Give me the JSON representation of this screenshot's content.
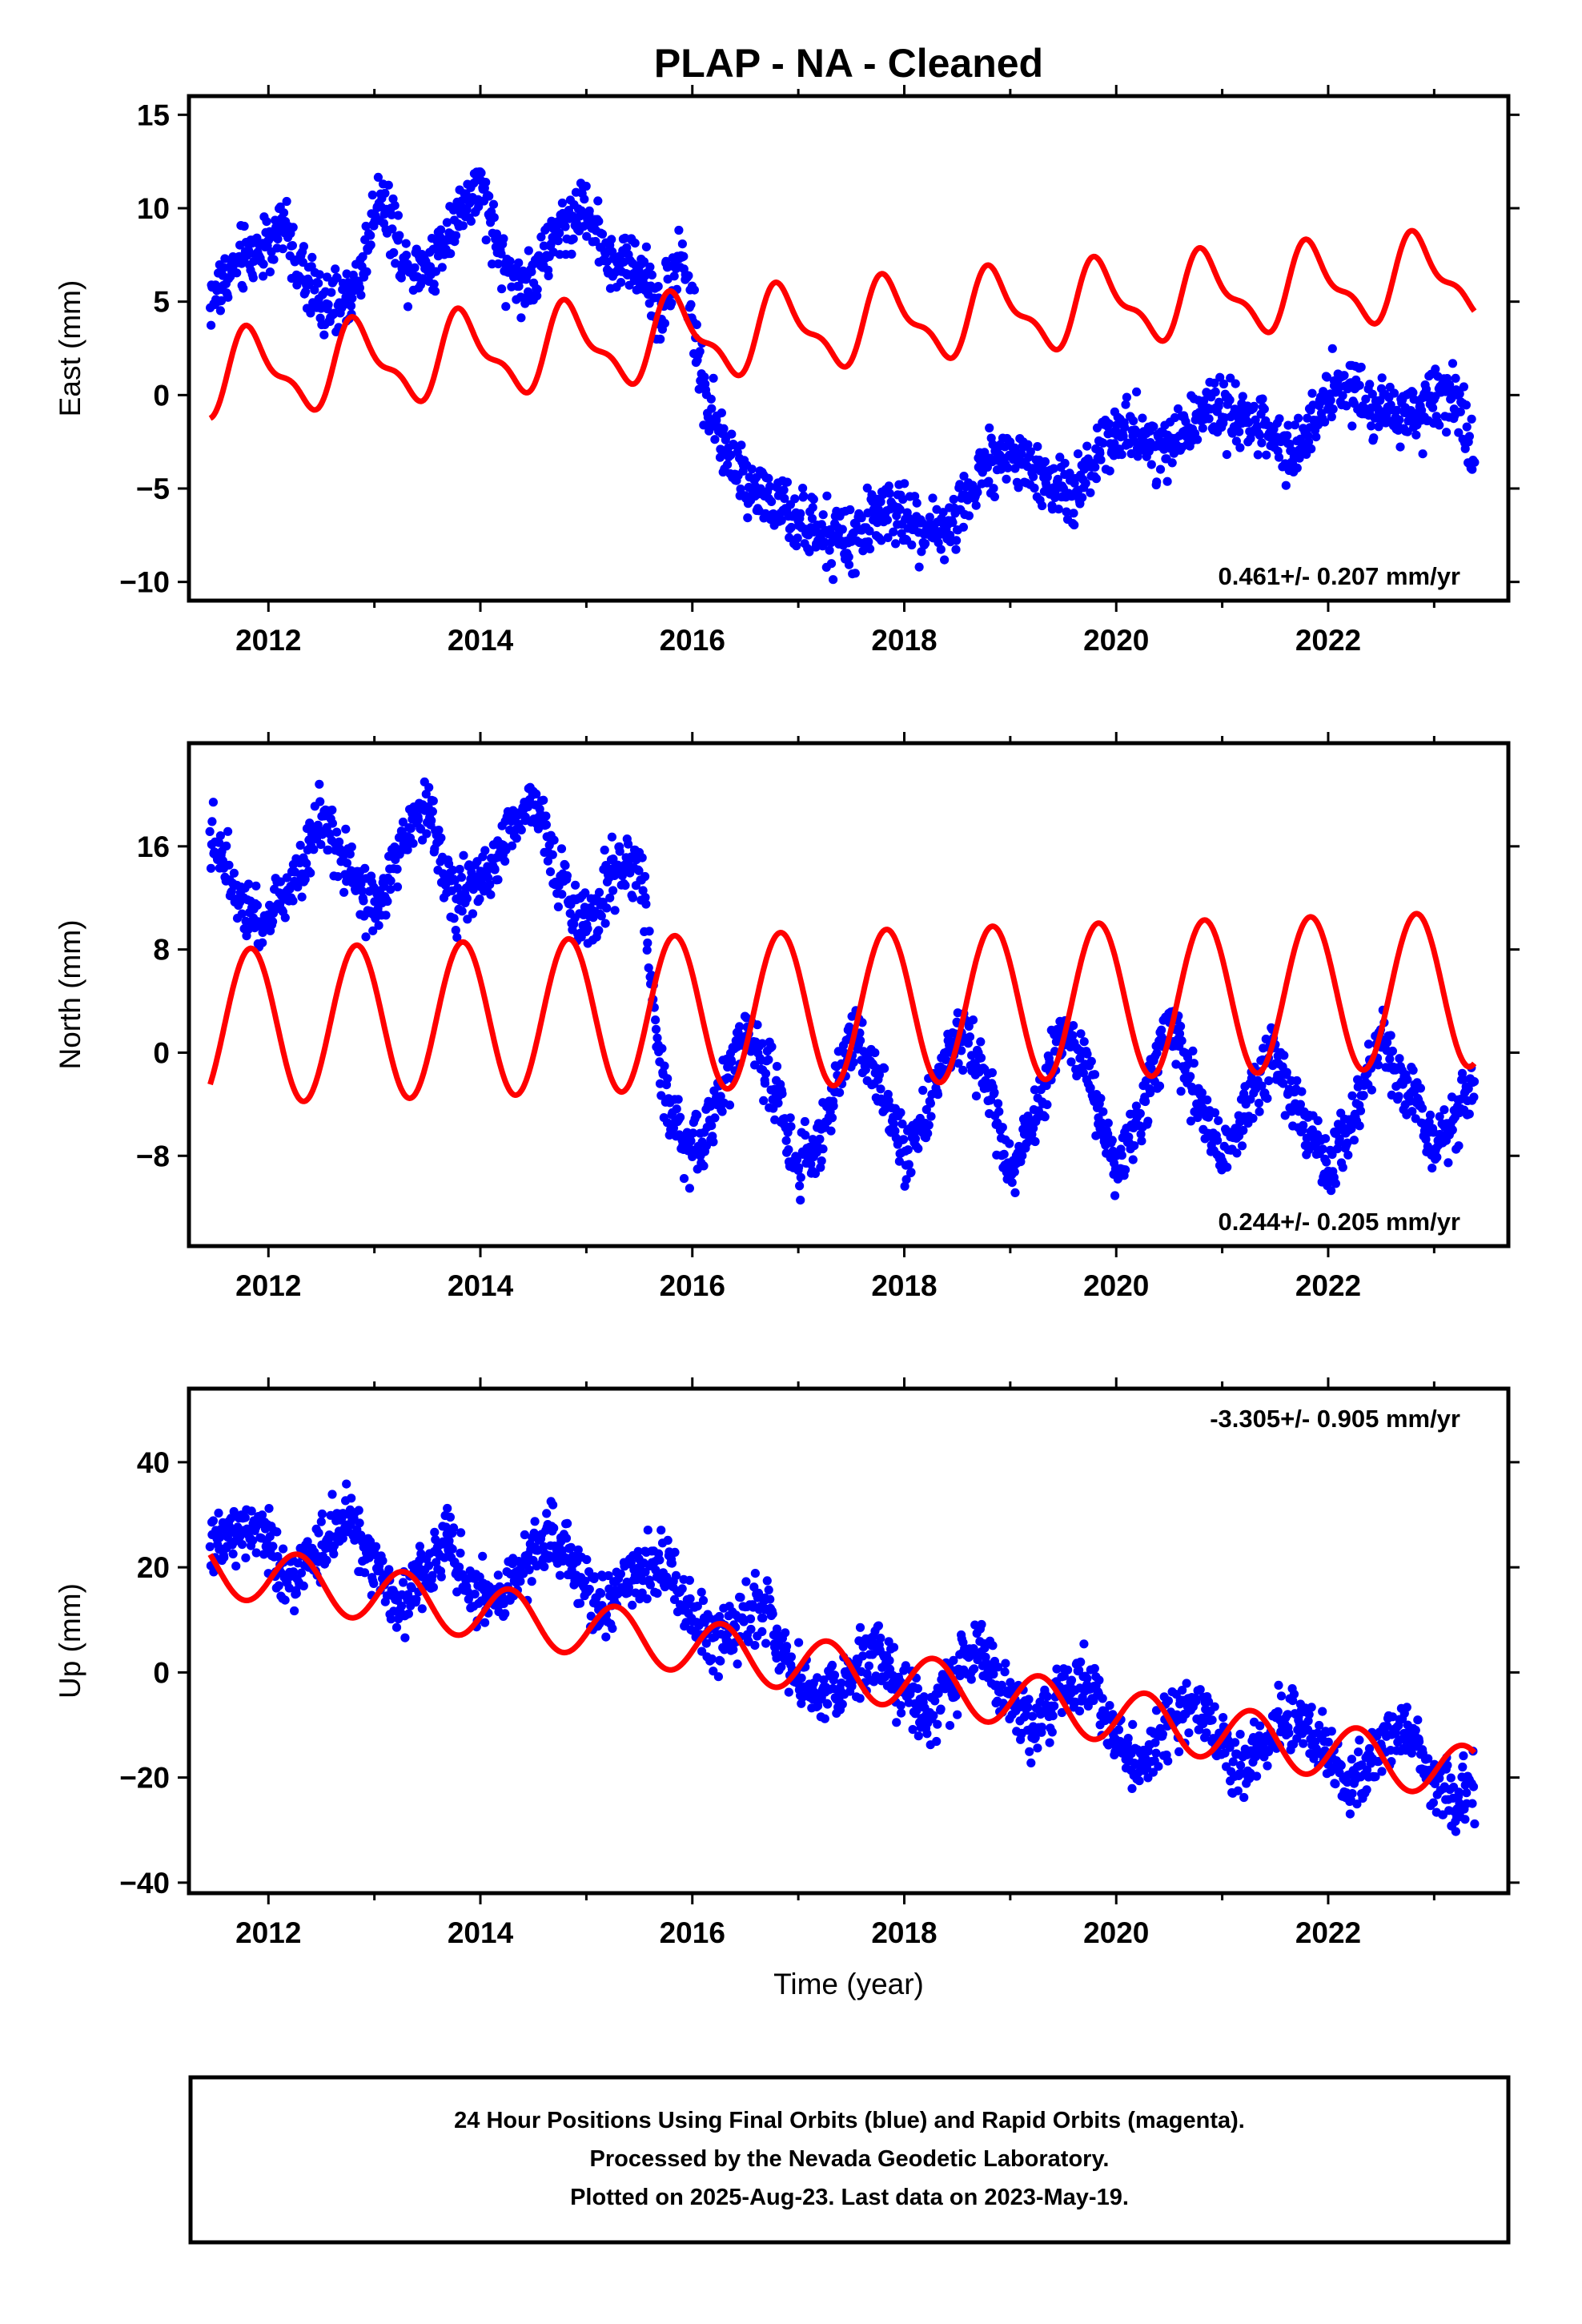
{
  "figure": {
    "title": "PLAP  - NA - Cleaned",
    "xlabel": "Time (year)",
    "footer": [
      "24 Hour Positions Using Final Orbits (blue) and Rapid Orbits (magenta).",
      "Processed by the Nevada Geodetic Laboratory.",
      "Plotted on 2025-Aug-23. Last data on 2023-May-19."
    ]
  },
  "colors": {
    "observations": "#0000ff",
    "model": "#ff0000",
    "frame": "#000000"
  },
  "chart_data": [
    {
      "type": "scatter",
      "name": "east",
      "ylabel": "East (mm)",
      "rate_label": "0.461+/- 0.207 mm/yr",
      "rate_position": "bottom-right",
      "xlim": [
        2011.25,
        2023.7
      ],
      "ylim": [
        -11,
        16
      ],
      "xticks": [
        2012,
        2014,
        2016,
        2018,
        2020,
        2022
      ],
      "xtick_labels": [
        "2012",
        "2014",
        "2016",
        "2018",
        "2020",
        "2022"
      ],
      "yticks": [
        -10,
        -5,
        0,
        5,
        10,
        15
      ],
      "ytick_labels": [
        "−10",
        "−5",
        "0",
        "5",
        "10",
        "15"
      ],
      "x_range": [
        2011.45,
        2023.38
      ],
      "series": [
        {
          "kind": "points",
          "color": "#0000ff",
          "x": [
            2011.45,
            2011.7,
            2011.95,
            2012.15,
            2012.35,
            2012.6,
            2012.85,
            2013.05,
            2013.3,
            2013.55,
            2013.75,
            2014.0,
            2014.25,
            2014.5,
            2014.75,
            2015.0,
            2015.25,
            2015.5,
            2015.7,
            2015.9,
            2016.1,
            2016.3,
            2016.6,
            2016.9,
            2017.2,
            2017.5,
            2017.8,
            2018.1,
            2018.4,
            2018.7,
            2019.0,
            2019.3,
            2019.6,
            2019.9,
            2020.2,
            2020.5,
            2020.8,
            2021.1,
            2021.4,
            2021.7,
            2022.0,
            2022.3,
            2022.6,
            2022.9,
            2023.2,
            2023.38
          ],
          "y": [
            5,
            7,
            8,
            9,
            6,
            4.5,
            6,
            11,
            7,
            7,
            9.5,
            11,
            6.5,
            6,
            9,
            10,
            7,
            7,
            4.5,
            8,
            0.5,
            -3,
            -5,
            -6.5,
            -7.5,
            -8,
            -6,
            -7,
            -7.5,
            -4,
            -3,
            -4.5,
            -5.5,
            -2,
            -2,
            -3,
            -0.5,
            -1,
            -2,
            -3,
            0.5,
            0,
            -1,
            -1,
            0,
            -3.5
          ]
        },
        {
          "kind": "line",
          "name": "model",
          "color": "#ff0000",
          "t0": 2011.45,
          "t1": 2023.38,
          "offset": 1.0,
          "slope": 0.461,
          "steps": [
            [
              2015.67,
              0
            ],
            [
              2016.31,
              0
            ]
          ],
          "annual": {
            "amplitude": 2.0,
            "phase_deg": 145
          },
          "semiannual": {
            "amplitude": 0.8,
            "phase_deg": -90
          }
        }
      ]
    },
    {
      "type": "scatter",
      "name": "north",
      "ylabel": "North (mm)",
      "rate_label": "0.244+/- 0.205 mm/yr",
      "rate_position": "bottom-right",
      "xlim": [
        2011.25,
        2023.7
      ],
      "ylim": [
        -15,
        24
      ],
      "xticks": [
        2012,
        2014,
        2016,
        2018,
        2020,
        2022
      ],
      "xtick_labels": [
        "2012",
        "2014",
        "2016",
        "2018",
        "2020",
        "2022"
      ],
      "yticks": [
        -8,
        0,
        8,
        16
      ],
      "ytick_labels": [
        "−8",
        "0",
        "8",
        "16"
      ],
      "x_range": [
        2011.45,
        2023.38
      ],
      "series": [
        {
          "kind": "points",
          "color": "#0000ff",
          "x": [
            2011.45,
            2011.7,
            2011.95,
            2012.2,
            2012.5,
            2012.8,
            2013.05,
            2013.3,
            2013.5,
            2013.75,
            2014.0,
            2014.25,
            2014.5,
            2014.75,
            2015.0,
            2015.25,
            2015.5,
            2015.7,
            2015.95,
            2016.2,
            2016.5,
            2016.75,
            2017.0,
            2017.25,
            2017.5,
            2017.75,
            2018.0,
            2018.25,
            2018.5,
            2018.75,
            2019.0,
            2019.25,
            2019.5,
            2019.75,
            2020.0,
            2020.25,
            2020.5,
            2020.75,
            2021.0,
            2021.25,
            2021.5,
            2021.75,
            2022.0,
            2022.25,
            2022.5,
            2022.75,
            2023.0,
            2023.2,
            2023.38
          ],
          "y": [
            17,
            13,
            10,
            13,
            18,
            13,
            11,
            17,
            19,
            12,
            13,
            17,
            20,
            13,
            10,
            14,
            15,
            -2,
            -8,
            -5,
            2,
            -2,
            -9,
            -6,
            2,
            -2,
            -8,
            -4,
            2,
            -2,
            -9,
            -5,
            2,
            -2,
            -9,
            -4,
            2,
            -3,
            -8,
            -4,
            0,
            -5,
            -9,
            -5,
            1,
            -3,
            -7,
            -6,
            -2
          ]
        },
        {
          "kind": "line",
          "name": "model",
          "color": "#ff0000",
          "t0": 2011.45,
          "t1": 2023.38,
          "offset": 2.0,
          "slope": 0.244,
          "steps": [],
          "annual": {
            "amplitude": 6.0,
            "phase_deg": 150
          },
          "semiannual": {
            "amplitude": 0.0,
            "phase_deg": 0
          }
        }
      ]
    },
    {
      "type": "scatter",
      "name": "up",
      "ylabel": "Up (mm)",
      "rate_label": "-3.305+/- 0.905 mm/yr",
      "rate_position": "top-right",
      "xlim": [
        2011.25,
        2023.7
      ],
      "ylim": [
        -42,
        54
      ],
      "xticks": [
        2012,
        2014,
        2016,
        2018,
        2020,
        2022
      ],
      "xtick_labels": [
        "2012",
        "2014",
        "2016",
        "2018",
        "2020",
        "2022"
      ],
      "yticks": [
        -40,
        -20,
        0,
        20,
        40
      ],
      "ytick_labels": [
        "−40",
        "−20",
        "0",
        "20",
        "40"
      ],
      "x_range": [
        2011.45,
        2023.38
      ],
      "series": [
        {
          "kind": "points",
          "color": "#0000ff",
          "x": [
            2011.45,
            2011.7,
            2011.95,
            2012.2,
            2012.45,
            2012.7,
            2012.95,
            2013.2,
            2013.45,
            2013.7,
            2013.95,
            2014.2,
            2014.45,
            2014.7,
            2014.95,
            2015.2,
            2015.45,
            2015.7,
            2015.95,
            2016.2,
            2016.45,
            2016.7,
            2016.95,
            2017.2,
            2017.45,
            2017.7,
            2017.95,
            2018.2,
            2018.45,
            2018.7,
            2018.95,
            2019.2,
            2019.45,
            2019.7,
            2019.95,
            2020.2,
            2020.45,
            2020.7,
            2020.95,
            2021.2,
            2021.45,
            2021.7,
            2021.95,
            2022.2,
            2022.45,
            2022.7,
            2022.95,
            2023.2,
            2023.38
          ],
          "y": [
            22,
            28,
            26,
            18,
            22,
            30,
            22,
            12,
            18,
            24,
            15,
            14,
            22,
            26,
            18,
            12,
            18,
            22,
            12,
            5,
            10,
            12,
            0,
            -5,
            -2,
            5,
            -2,
            -8,
            -2,
            5,
            -5,
            -10,
            -5,
            0,
            -10,
            -18,
            -10,
            -5,
            -12,
            -18,
            -12,
            -8,
            -15,
            -22,
            -15,
            -10,
            -18,
            -25,
            -22
          ]
        },
        {
          "kind": "line",
          "name": "model",
          "color": "#ff0000",
          "t0": 2011.45,
          "t1": 2023.38,
          "offset": 20.0,
          "slope": -3.305,
          "steps": [],
          "annual": {
            "amplitude": 5.2,
            "phase_deg": -10
          },
          "semiannual": {
            "amplitude": 0.0,
            "phase_deg": 0
          }
        }
      ]
    }
  ]
}
